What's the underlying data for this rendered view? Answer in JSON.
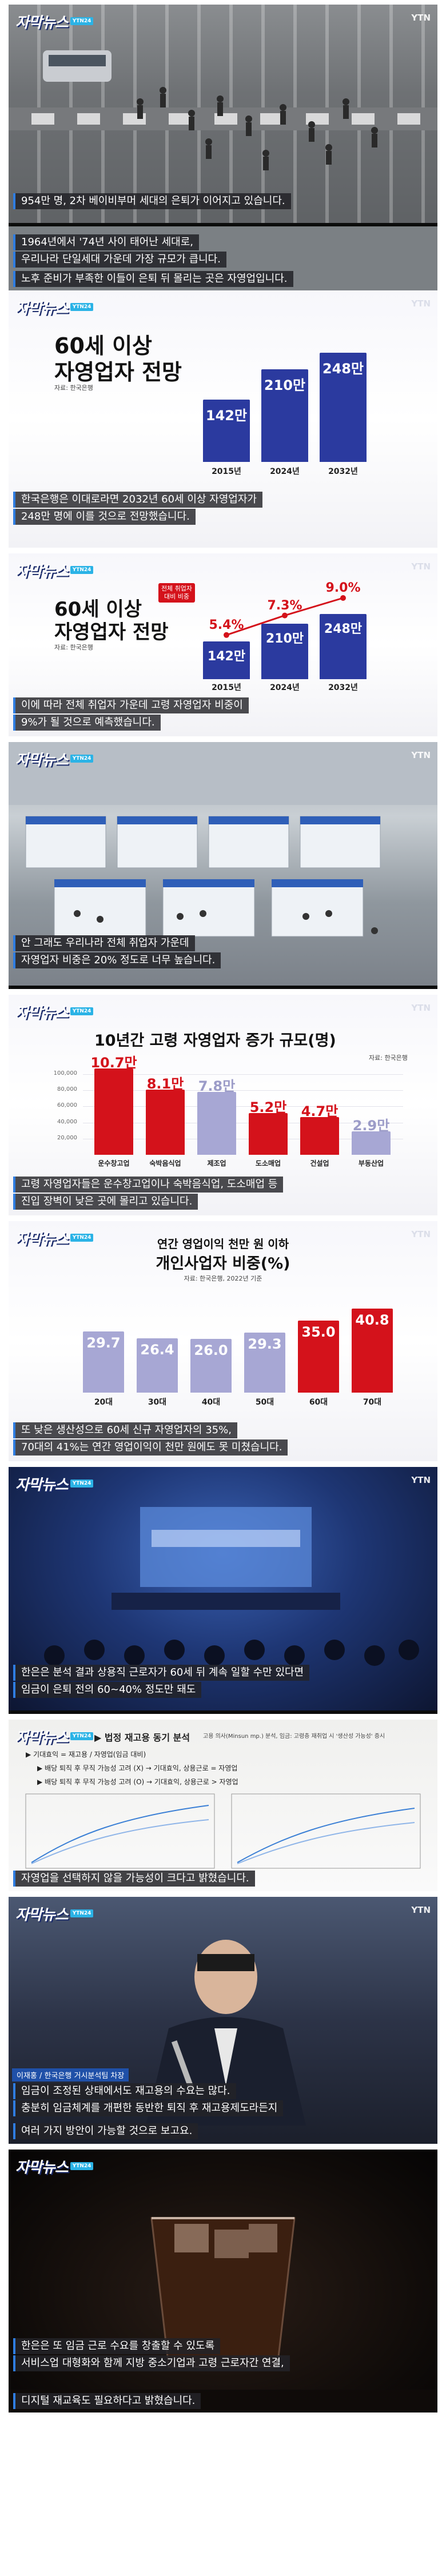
{
  "brand": {
    "logo": "자막뉴스",
    "tag": "YTN24",
    "network": "YTN"
  },
  "scenes": [
    {
      "captions": [
        "954만 명, 2차 베이비부머 세대의 은퇴가 이어지고 있습니다."
      ]
    },
    {
      "captions": [
        "1964년에서 '74년 사이 태어난 세대로,",
        "우리나라 단일세대 가운데 가장 규모가 큽니다."
      ]
    },
    {
      "captions": [
        "노후 준비가 부족한 이들이 은퇴 뒤 몰리는 곳은 자영업입니다."
      ]
    }
  ],
  "chart1": {
    "title_line1": "60세 이상",
    "title_line2": "자영업자 전망",
    "source": "자료: 한국은행",
    "captions": [
      "한국은행은 이대로라면 2032년 60세 이상 자영업자가",
      "248만 명에 이를 것으로 전망했습니다."
    ]
  },
  "chart1_data": {
    "type": "bar",
    "categories": [
      "2015년",
      "2024년",
      "2032년"
    ],
    "values": [
      142,
      210,
      248
    ],
    "value_labels": [
      "142만",
      "210만",
      "248만"
    ],
    "unit": "명"
  },
  "chart2": {
    "title_line1": "60세 이상",
    "title_line2": "자영업자 전망",
    "source": "자료: 한국은행",
    "legend": "전체 취업자 대비 비중",
    "captions": [
      "이에 따라 전체 취업자 가운데 고령 자영업자 비중이",
      "9%가 될 것으로 예측했습니다."
    ]
  },
  "chart2_data": {
    "type": "bar",
    "categories": [
      "2015년",
      "2024년",
      "2032년"
    ],
    "values": [
      142,
      210,
      248
    ],
    "value_labels": [
      "142만",
      "210만",
      "248만"
    ],
    "share_pct": [
      5.4,
      7.3,
      9.0
    ],
    "share_labels": [
      "5.4%",
      "7.3%",
      "9.0%"
    ]
  },
  "scene_expo": {
    "captions": [
      "안 그래도 우리나라 전체 취업자 가운데",
      "자영업자 비중은 20% 정도로 너무 높습니다."
    ]
  },
  "chart3": {
    "title": "10년간 고령 자영업자 증가 규모(명)",
    "source": "자료: 한국은행",
    "y_ticks": [
      "100,000",
      "80,000",
      "60,000",
      "40,000",
      "20,000"
    ],
    "captions": [
      "고령 자영업자들은 운수창고업이나 숙박음식업, 도소매업 등",
      "진입 장벽이 낮은 곳에 몰리고 있습니다."
    ]
  },
  "chart3_data": {
    "type": "bar",
    "categories": [
      "운수창고업",
      "숙박음식업",
      "제조업",
      "도소매업",
      "건설업",
      "부동산업"
    ],
    "values": [
      107000,
      81000,
      78000,
      52000,
      47000,
      29000
    ],
    "value_labels": [
      "10.7만",
      "8.1만",
      "7.8만",
      "5.2만",
      "4.7만",
      "2.9만"
    ],
    "highlight": [
      true,
      true,
      false,
      true,
      true,
      false
    ]
  },
  "chart4": {
    "title_line1": "연간 영업이익 천만 원 이하",
    "title_line2": "개인사업자 비중(%)",
    "source": "자료: 한국은행, 2022년 기준",
    "captions": [
      "또 낮은 생산성으로 60세 신규 자영업자의 35%,",
      "70대의 41%는 연간 영업이익이 천만 원에도 못 미쳤습니다."
    ]
  },
  "chart4_data": {
    "type": "bar",
    "categories": [
      "20대",
      "30대",
      "40대",
      "50대",
      "60대",
      "70대"
    ],
    "values": [
      29.7,
      26.4,
      26.0,
      29.3,
      35.0,
      40.8
    ],
    "highlight": [
      false,
      false,
      false,
      false,
      true,
      true
    ]
  },
  "scene_conf": {
    "captions": [
      "한은은 분석 결과 상용직 근로자가 60세 뒤 계속 일할 수만 있다면",
      "임금이 은퇴 전의 60~40% 정도만 돼도"
    ]
  },
  "scene_doc": {
    "heading": "▶ 법정 재고용 동기 분석",
    "sub": "고용 의사(Minsun mp.) 분석, 임금: 고령층 재취업 시 '생산성 가능성' 증시",
    "rows": [
      "▶ 기대효익 = 재고용 / 자영업(임금 대비)",
      "▶ 배당 퇴직 후 무직 가능성 고려 (X) → 기대효익, 상용근로 = 자영업",
      "▶ 배당 퇴직 후 무직 가능성 고려 (O) → 기대효익, 상용근로 > 자영업"
    ],
    "captions": [
      "자영업을 선택하지 않을 가능성이 크다고 밝혔습니다."
    ]
  },
  "scene_speaker": {
    "name_tag": "이재홍 / 한국은행 거시분석팀 차장",
    "captions": [
      "임금이 조정된 상태에서도 재고용의 수요는 많다.",
      "충분히 임금체계를 개편한 동반한 퇴직 후 재고용제도라든지"
    ],
    "extra": [
      "여러 가지 방안이 가능할 것으로 보고요."
    ]
  },
  "scene_coffee": {
    "captions": [
      "한은은 또 임금 근로 수요를 창출할 수 있도록",
      "서비스업 대형화와 함께 지방 중소기업과 고령 근로자간 연결,"
    ],
    "extra": [
      "디지털 재교육도 필요하다고 밝혔습니다."
    ]
  }
}
